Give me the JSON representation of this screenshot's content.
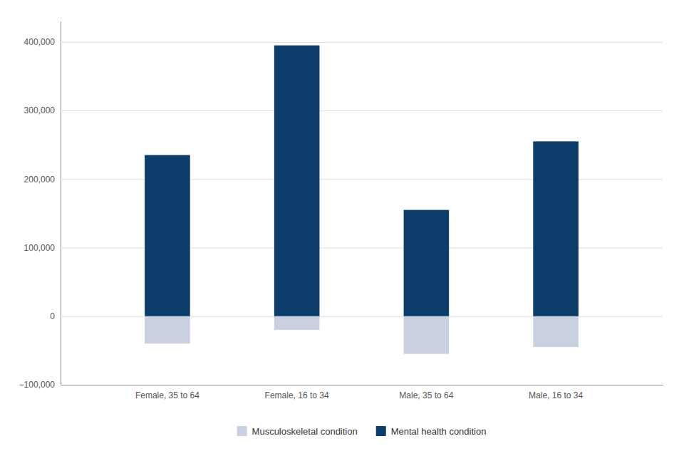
{
  "chart_data": {
    "type": "bar",
    "categories": [
      "Female, 35 to 64",
      "Female, 16 to 34",
      "Male, 35 to 64",
      "Male, 16 to 34"
    ],
    "series": [
      {
        "name": "Musculoskeletal condition",
        "color": "#c9d0e0",
        "values": [
          -40000,
          -20000,
          -55000,
          -45000
        ]
      },
      {
        "name": "Mental health condition",
        "color": "#0d3d6b",
        "values": [
          235000,
          395000,
          155000,
          255000
        ]
      }
    ],
    "ylim": [
      -100000,
      430000
    ],
    "yticks": [
      {
        "value": -100000,
        "label": "−100,000"
      },
      0,
      {
        "value": 100000,
        "label": "100,000"
      },
      {
        "value": 200000,
        "label": "200,000"
      },
      {
        "value": 300000,
        "label": "300,000"
      },
      {
        "value": 400000,
        "label": "400,000"
      }
    ],
    "grid": true,
    "legend": "bottom"
  }
}
